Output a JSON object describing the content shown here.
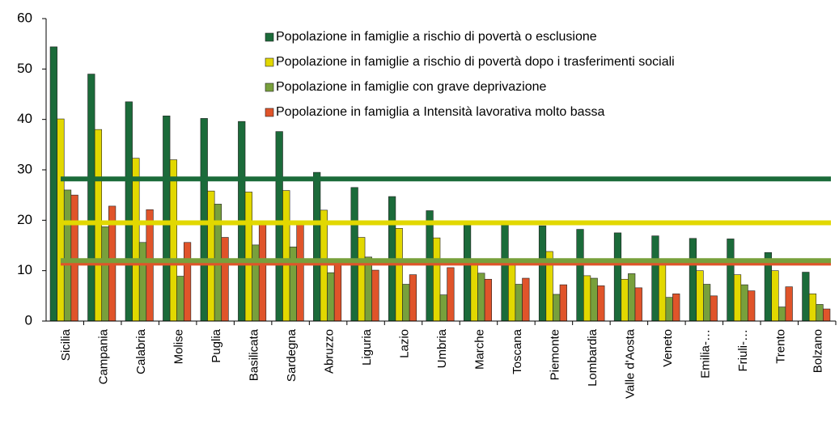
{
  "chart_data": {
    "type": "bar",
    "categories": [
      "Sicilia",
      "Campania",
      "Calabria",
      "Molise",
      "Puglia",
      "Basilicata",
      "Sardegna",
      "Abruzzo",
      "Liguria",
      "Lazio",
      "Umbria",
      "Marche",
      "Toscana",
      "Piemonte",
      "Lombardia",
      "Valle d'Aosta",
      "Veneto",
      "Emilia-…",
      "Friuli-…",
      "Trento",
      "Bolzano"
    ],
    "series": [
      {
        "name": "Popolazione in famiglie a rischio di povertà o esclusione",
        "color": "#1b6b3a",
        "average": 28.2,
        "values": [
          54.4,
          49.0,
          43.5,
          40.7,
          40.2,
          39.6,
          37.6,
          29.5,
          26.5,
          24.7,
          21.9,
          19.5,
          19.4,
          18.9,
          18.2,
          17.5,
          16.9,
          16.4,
          16.3,
          13.6,
          9.7
        ]
      },
      {
        "name": "Popolazione in famiglie a rischio di povertà dopo i trasferimenti sociali",
        "color": "#e2d800",
        "average": 19.5,
        "values": [
          40.1,
          38.0,
          32.3,
          32.0,
          25.8,
          25.6,
          25.9,
          22.0,
          16.6,
          18.4,
          16.5,
          11.5,
          11.3,
          13.8,
          9.0,
          8.3,
          11.5,
          10.0,
          9.2,
          10.0,
          5.4
        ]
      },
      {
        "name": "Popolazione in famiglie con grave deprivazione",
        "color": "#78a03c",
        "average": 12.0,
        "values": [
          26.0,
          18.7,
          15.6,
          8.9,
          23.2,
          15.1,
          14.7,
          9.6,
          12.7,
          7.3,
          5.2,
          9.5,
          7.3,
          5.3,
          8.5,
          9.4,
          4.7,
          7.3,
          7.2,
          2.8,
          3.3
        ]
      },
      {
        "name": "Popolazione in famiglia a Intensità lavorativa molto bassa",
        "color": "#e0542a",
        "average": 11.5,
        "values": [
          25.0,
          22.8,
          22.1,
          15.6,
          16.6,
          19.6,
          19.2,
          12.0,
          10.1,
          9.2,
          10.6,
          8.3,
          8.5,
          7.2,
          7.0,
          6.6,
          5.4,
          5.0,
          6.0,
          6.8,
          2.4
        ]
      }
    ],
    "ylim": [
      0,
      60
    ],
    "yticks": [
      0,
      10,
      20,
      30,
      40,
      50,
      60
    ],
    "grid": false,
    "legend": "top-right"
  }
}
